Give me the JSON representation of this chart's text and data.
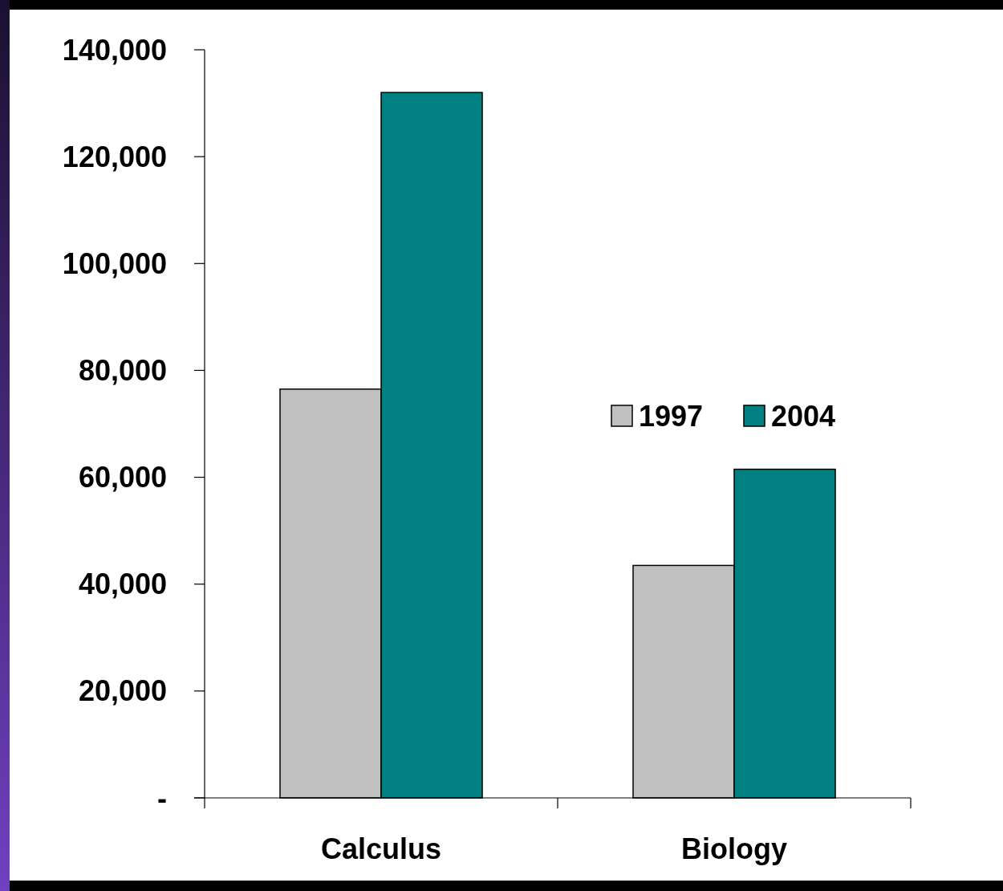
{
  "chart_data": {
    "type": "bar",
    "categories": [
      "Calculus",
      "Biology"
    ],
    "series": [
      {
        "name": "1997",
        "color": "#c0c0c0",
        "values": [
          76500,
          43500
        ]
      },
      {
        "name": "2004",
        "color": "#008080",
        "values": [
          132000,
          61500
        ]
      }
    ],
    "ylim": [
      0,
      140000
    ],
    "yticks": [
      {
        "value": 0,
        "label": "-"
      },
      {
        "value": 20000,
        "label": "20,000"
      },
      {
        "value": 40000,
        "label": "40,000"
      },
      {
        "value": 60000,
        "label": "60,000"
      },
      {
        "value": 80000,
        "label": "80,000"
      },
      {
        "value": 100000,
        "label": "100,000"
      },
      {
        "value": 120000,
        "label": "120,000"
      },
      {
        "value": 140000,
        "label": "140,000"
      }
    ],
    "grid": false,
    "legend": "right"
  }
}
